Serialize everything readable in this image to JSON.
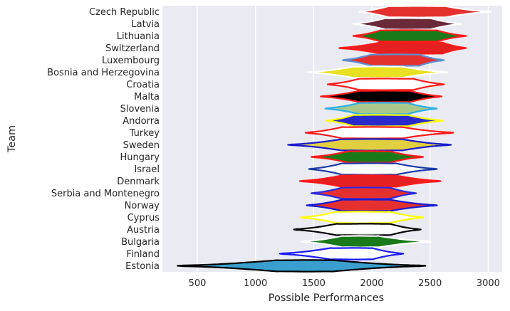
{
  "chart_data": {
    "type": "violin",
    "title": "",
    "xlabel": "Possible Performances",
    "ylabel": "Team",
    "xlim": [
      200,
      3120
    ],
    "x_ticks": [
      500,
      1000,
      1500,
      2000,
      2500,
      3000
    ],
    "grid": true,
    "style": "seaborn darkgrid",
    "series": [
      {
        "team": "Czech Republic",
        "min": 1890,
        "max": 3020,
        "median": 2400,
        "q1": 2150,
        "q3": 2620,
        "fill": "#e53030",
        "edge": "#ffffff"
      },
      {
        "team": "Latvia",
        "min": 1840,
        "max": 2770,
        "median": 2300,
        "q1": 2120,
        "q3": 2500,
        "fill": "#6b2a3a",
        "edge": "#ffffff"
      },
      {
        "team": "Lithuania",
        "min": 1840,
        "max": 2810,
        "median": 2300,
        "q1": 2080,
        "q3": 2550,
        "fill": "#1a7a1a",
        "edge": "#ff1a1a"
      },
      {
        "team": "Switzerland",
        "min": 1720,
        "max": 2810,
        "median": 2300,
        "q1": 2080,
        "q3": 2600,
        "fill": "#e52020",
        "edge": "#ff1a1a"
      },
      {
        "team": "Luxembourg",
        "min": 1750,
        "max": 2620,
        "median": 2200,
        "q1": 2000,
        "q3": 2400,
        "fill": "#e53030",
        "edge": "#5b8fd0"
      },
      {
        "team": "Bosnia and Herzegovina",
        "min": 1450,
        "max": 2650,
        "median": 2050,
        "q1": 1850,
        "q3": 2250,
        "fill": "#e8e020",
        "edge": "#ffffff"
      },
      {
        "team": "Croatia",
        "min": 1620,
        "max": 2620,
        "median": 2100,
        "q1": 1900,
        "q3": 2350,
        "fill": "#ffffff",
        "edge": "#ff1a1a"
      },
      {
        "team": "Malta",
        "min": 1560,
        "max": 2600,
        "median": 2100,
        "q1": 1900,
        "q3": 2320,
        "fill": "#000000",
        "edge": "#ff1a1a"
      },
      {
        "team": "Slovenia",
        "min": 1600,
        "max": 2560,
        "median": 2100,
        "q1": 1900,
        "q3": 2300,
        "fill": "#a8c88c",
        "edge": "#2bb0e8"
      },
      {
        "team": "Andorra",
        "min": 1610,
        "max": 2610,
        "median": 2050,
        "q1": 1850,
        "q3": 2300,
        "fill": "#2a2acc",
        "edge": "#ffff00"
      },
      {
        "team": "Turkey",
        "min": 1430,
        "max": 2700,
        "median": 2000,
        "q1": 1750,
        "q3": 2250,
        "fill": "#ffffff",
        "edge": "#ff1a1a"
      },
      {
        "team": "Sweden",
        "min": 1280,
        "max": 2680,
        "median": 2000,
        "q1": 1750,
        "q3": 2250,
        "fill": "#e0d040",
        "edge": "#1a1acc"
      },
      {
        "team": "Hungary",
        "min": 1480,
        "max": 2440,
        "median": 1950,
        "q1": 1800,
        "q3": 2150,
        "fill": "#1a7a1a",
        "edge": "#ff1a1a"
      },
      {
        "team": "Israel",
        "min": 1460,
        "max": 2560,
        "median": 2000,
        "q1": 1750,
        "q3": 2200,
        "fill": "#ffffff",
        "edge": "#1a3aa8"
      },
      {
        "team": "Denmark",
        "min": 1380,
        "max": 2590,
        "median": 1950,
        "q1": 1750,
        "q3": 2200,
        "fill": "#e52020",
        "edge": "#ff1a1a"
      },
      {
        "team": "Serbia and Montenegro",
        "min": 1480,
        "max": 2380,
        "median": 1950,
        "q1": 1750,
        "q3": 2150,
        "fill": "#e53030",
        "edge": "#2a2ae0"
      },
      {
        "team": "Norway",
        "min": 1440,
        "max": 2560,
        "median": 1950,
        "q1": 1750,
        "q3": 2150,
        "fill": "#e53030",
        "edge": "#1a1acc"
      },
      {
        "team": "Cyprus",
        "min": 1390,
        "max": 2440,
        "median": 1900,
        "q1": 1700,
        "q3": 2150,
        "fill": "#ffffff",
        "edge": "#ffff00"
      },
      {
        "team": "Austria",
        "min": 1330,
        "max": 2420,
        "median": 1950,
        "q1": 1700,
        "q3": 2150,
        "fill": "#ffffff",
        "edge": "#000000"
      },
      {
        "team": "Bulgaria",
        "min": 1400,
        "max": 2510,
        "median": 1900,
        "q1": 1750,
        "q3": 2050,
        "fill": "#1a7a1a",
        "edge": "#ffffff"
      },
      {
        "team": "Finland",
        "min": 1210,
        "max": 2270,
        "median": 1850,
        "q1": 1650,
        "q3": 2000,
        "fill": "#ffffff",
        "edge": "#1a1aff"
      },
      {
        "team": "Estonia",
        "min": 330,
        "max": 2460,
        "median": 1450,
        "q1": 1200,
        "q3": 1650,
        "fill": "#3a9fcf",
        "edge": "#000000"
      }
    ]
  }
}
